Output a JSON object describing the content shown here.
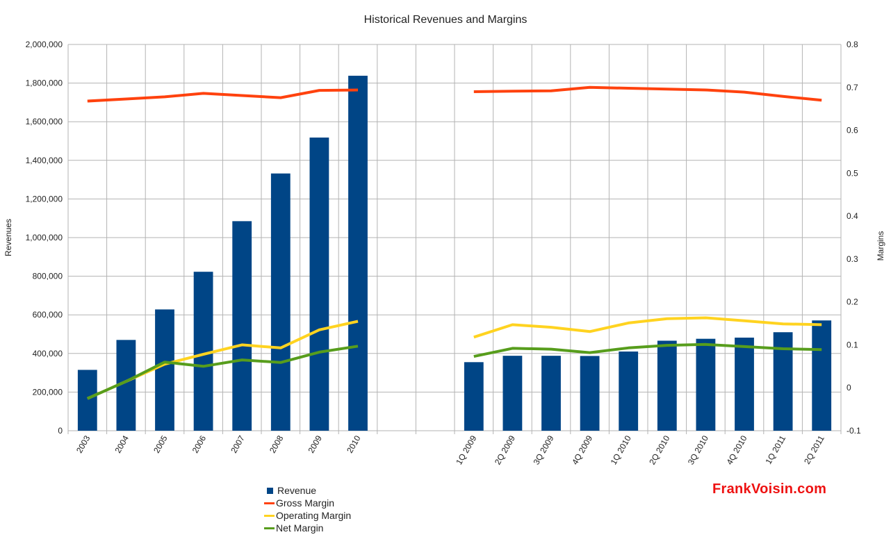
{
  "chart_data": {
    "type": "bar",
    "title": "Historical Revenues and Margins",
    "ylabel": "Revenues",
    "y2label": "Margins",
    "ylim": [
      0,
      2000000
    ],
    "y2lim": [
      -0.1,
      0.8
    ],
    "yticks": [
      "0",
      "200,000",
      "400,000",
      "600,000",
      "800,000",
      "1,000,000",
      "1,200,000",
      "1,400,000",
      "1,600,000",
      "1,800,000",
      "2,000,000"
    ],
    "y2ticks": [
      "-0.1",
      "0",
      "0.1",
      "0.2",
      "0.3",
      "0.4",
      "0.5",
      "0.6",
      "0.7",
      "0.8"
    ],
    "categories": [
      "2003",
      "2004",
      "2005",
      "2006",
      "2007",
      "2008",
      "2009",
      "2010",
      "",
      "",
      "1Q 2009",
      "2Q 2009",
      "3Q 2009",
      "4Q 2009",
      "1Q 2010",
      "2Q 2010",
      "3Q 2010",
      "4Q 2010",
      "1Q 2011",
      "2Q 2011"
    ],
    "grid": true,
    "legend_position": "bottom-left",
    "series": [
      {
        "name": "Revenue",
        "kind": "bar",
        "axis": "left",
        "color": "#004586",
        "values": [
          315000,
          470000,
          628000,
          823000,
          1085000,
          1332000,
          1518000,
          1838000,
          null,
          null,
          355000,
          388000,
          388000,
          387000,
          410000,
          466000,
          476000,
          482000,
          510000,
          571000
        ]
      },
      {
        "name": "Gross Margin",
        "kind": "line",
        "axis": "right",
        "color": "#ff420e",
        "values": [
          0.668,
          0.673,
          0.678,
          0.686,
          0.681,
          0.676,
          0.693,
          0.694,
          null,
          null,
          0.69,
          0.691,
          0.692,
          0.7,
          0.698,
          0.696,
          0.694,
          0.689,
          0.679,
          0.67
        ]
      },
      {
        "name": "Operating Margin",
        "kind": "line",
        "axis": "right",
        "color": "#ffd320",
        "values": [
          -0.025,
          0.015,
          0.055,
          0.078,
          0.1,
          0.093,
          0.135,
          0.155,
          null,
          null,
          0.118,
          0.147,
          0.141,
          0.131,
          0.151,
          0.161,
          0.163,
          0.156,
          0.149,
          0.147
        ]
      },
      {
        "name": "Net Margin",
        "kind": "line",
        "axis": "right",
        "color": "#579d1c",
        "values": [
          -0.025,
          0.015,
          0.06,
          0.05,
          0.065,
          0.059,
          0.083,
          0.097,
          null,
          null,
          0.073,
          0.092,
          0.09,
          0.082,
          0.093,
          0.099,
          0.101,
          0.096,
          0.091,
          0.089
        ]
      }
    ]
  },
  "watermark": "FrankVoisin.com"
}
